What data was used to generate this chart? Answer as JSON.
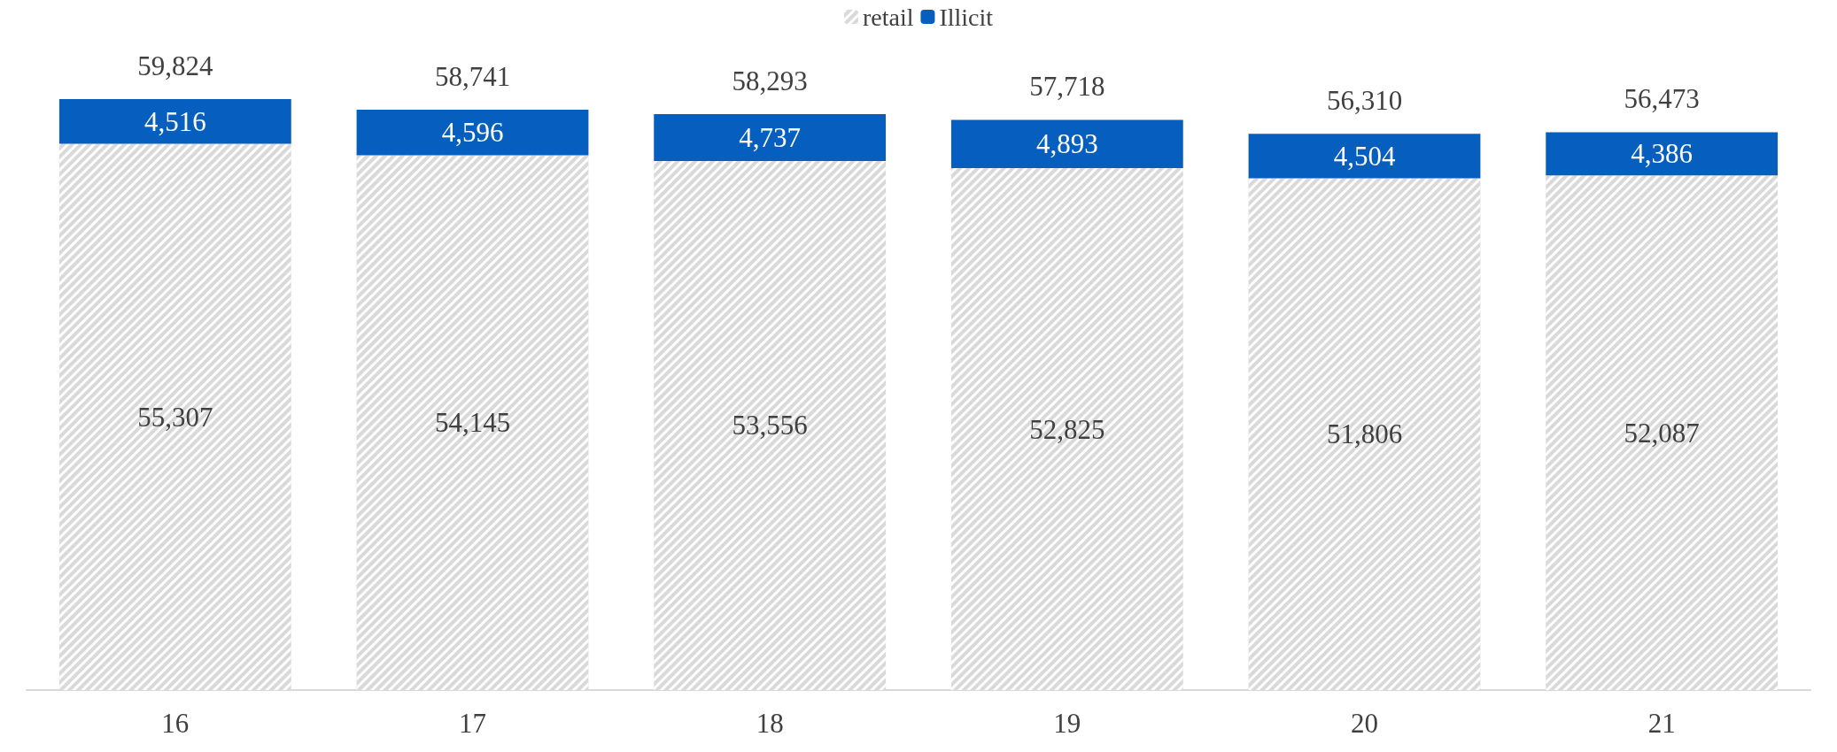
{
  "chart_data": {
    "type": "bar",
    "stacked": true,
    "legend": "top",
    "categories": [
      "16",
      "17",
      "18",
      "19",
      "20",
      "21"
    ],
    "series": [
      {
        "name": "retail",
        "color": "#d9d9d9",
        "values": [
          55307,
          54145,
          53556,
          52825,
          51806,
          52087
        ],
        "value_labels": [
          "55,307",
          "54,145",
          "53,556",
          "52,825",
          "51,806",
          "52,087"
        ]
      },
      {
        "name": "Illicit",
        "color": "#065fbf",
        "values": [
          4516,
          4596,
          4737,
          4893,
          4504,
          4386
        ],
        "value_labels": [
          "4,516",
          "4,596",
          "4,737",
          "4,893",
          "4,504",
          "4,386"
        ]
      }
    ],
    "totals": [
      "59,824",
      "58,741",
      "58,293",
      "57,718",
      "56,310",
      "56,473"
    ]
  }
}
